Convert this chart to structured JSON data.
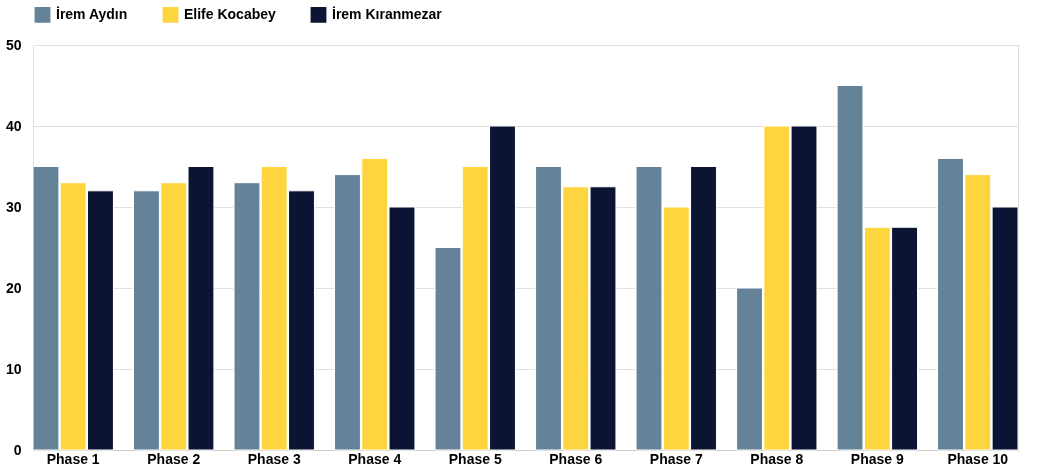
{
  "chart_data": {
    "type": "bar",
    "categories": [
      "Phase 1",
      "Phase 2",
      "Phase 3",
      "Phase 4",
      "Phase 5",
      "Phase 6",
      "Phase 7",
      "Phase 8",
      "Phase 9",
      "Phase 10"
    ],
    "series": [
      {
        "name": "İrem Aydın",
        "color": "#658398",
        "values": [
          35,
          32,
          33,
          34,
          25,
          35,
          35,
          20,
          45,
          36
        ]
      },
      {
        "name": "Elife Kocabey",
        "color": "#ffd53f",
        "values": [
          33,
          33,
          35,
          36,
          35,
          32.5,
          30,
          40,
          27.5,
          34
        ]
      },
      {
        "name": "İrem Kıranmezar",
        "color": "#0b1533",
        "values": [
          32,
          35,
          32,
          30,
          40,
          32.5,
          35,
          40,
          27.5,
          30
        ]
      }
    ],
    "ylim": [
      0,
      50
    ],
    "yticks": [
      0,
      10,
      20,
      30,
      40,
      50
    ],
    "grid": "y",
    "legend": "top"
  }
}
